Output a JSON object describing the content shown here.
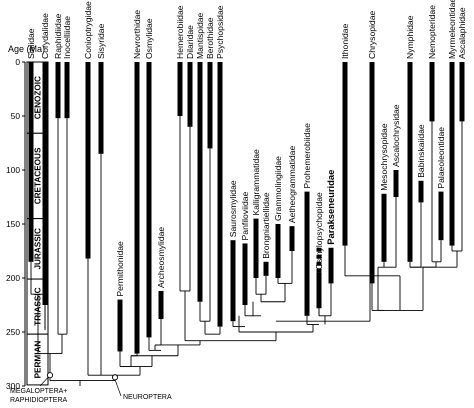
{
  "axis": {
    "title": "Age (Ma)",
    "ticks": [
      0,
      50,
      100,
      150,
      200,
      250,
      300
    ]
  },
  "periods": [
    {
      "name": "CENOZOIC",
      "start": 0,
      "end": 66
    },
    {
      "name": "CRETACEOUS",
      "start": 66,
      "end": 145
    },
    {
      "name": "JURASSIC",
      "start": 145,
      "end": 201
    },
    {
      "name": "TRIASSIC",
      "start": 201,
      "end": 252
    },
    {
      "name": "PERMIAN",
      "start": 252,
      "end": 299
    }
  ],
  "taxa": [
    {
      "name": "Sialidae",
      "bar": [
        0,
        185
      ],
      "thin": [
        185,
        215
      ]
    },
    {
      "name": "Corydalidae",
      "bar": [
        0,
        225
      ],
      "thin": [
        225,
        248
      ]
    },
    {
      "name": "Raphidiidae",
      "bar": [
        0,
        52
      ],
      "thin": [
        52,
        252
      ]
    },
    {
      "name": "Inocelliidae",
      "bar": [
        0,
        52
      ],
      "thin": [
        52,
        252
      ]
    },
    {
      "name": "Conioptrygidae",
      "bar": [
        0,
        182
      ],
      "thin": [
        182,
        280
      ]
    },
    {
      "name": "Sisyridae",
      "bar": [
        0,
        85
      ],
      "thin": [
        85,
        278
      ]
    },
    {
      "name": "Permithonidae",
      "bar": [
        220,
        268
      ],
      "thin": [
        268,
        282
      ]
    },
    {
      "name": "Nevrorthidae",
      "bar": [
        0,
        270
      ],
      "thin": [
        270,
        272
      ]
    },
    {
      "name": "Osmylidae",
      "bar": [
        0,
        255
      ],
      "thin": [
        255,
        267
      ]
    },
    {
      "name": "Archeosmylidae",
      "bar": [
        212,
        238
      ],
      "thin": [
        238,
        262
      ]
    },
    {
      "name": "Hemerobiidae",
      "bar": [
        0,
        50
      ],
      "thin": [
        50,
        212
      ]
    },
    {
      "name": "Dilaridae",
      "bar": [
        0,
        60
      ],
      "thin": [
        60,
        212
      ]
    },
    {
      "name": "Mantispidae",
      "bar": [
        0,
        222
      ],
      "thin": [
        222,
        240
      ]
    },
    {
      "name": "Berothidae",
      "bar": [
        0,
        80
      ],
      "thin": [
        80,
        240
      ]
    },
    {
      "name": "Psychopsidae",
      "bar": [
        0,
        245
      ],
      "thin": [
        245,
        252
      ]
    },
    {
      "name": "Saurosmylidae",
      "bar": [
        165,
        240
      ],
      "thin": [
        240,
        245
      ]
    },
    {
      "name": "Panfiloviidae",
      "bar": [
        168,
        225
      ],
      "thin": [
        225,
        235
      ]
    },
    {
      "name": "Kalligrammatidae",
      "bar": [
        145,
        200
      ],
      "thin": [
        200,
        215
      ]
    },
    {
      "name": "Brongniartiellidae",
      "bar": [
        185,
        198
      ],
      "thin": [
        198,
        215
      ]
    },
    {
      "name": "Grammolingiidae",
      "bar": [
        150,
        200
      ],
      "thin": [
        200,
        205
      ]
    },
    {
      "name": "Aetheogrammatidae",
      "bar": [
        152,
        175
      ],
      "thin": [
        175,
        205
      ]
    },
    {
      "name": "Prohemerobiidae",
      "bar": [
        120,
        235
      ],
      "thin": [
        235,
        243
      ]
    },
    {
      "name": "Osmylopsychopidae",
      "bar": [
        195,
        228
      ],
      "thin": [
        228,
        235
      ],
      "dashed": [
        172,
        228
      ]
    },
    {
      "name": "Parakseneuridae",
      "bar": [
        172,
        205
      ],
      "thin": [
        205,
        235
      ],
      "bold": true
    },
    {
      "name": "Ithonidae",
      "bar": [
        0,
        170
      ],
      "thin": [
        170,
        198
      ]
    },
    {
      "name": "Chrysopidae",
      "bar": [
        0,
        205
      ],
      "thin": [
        205,
        230
      ]
    },
    {
      "name": "Mesochrysopidae",
      "bar": [
        122,
        185
      ],
      "thin": [
        185,
        190
      ]
    },
    {
      "name": "Ascalochrysidae",
      "bar": [
        100,
        125
      ],
      "thin": [
        125,
        190
      ]
    },
    {
      "name": "Nymphidae",
      "bar": [
        0,
        185
      ],
      "thin": [
        185,
        190
      ]
    },
    {
      "name": "Babinskaiidae",
      "bar": [
        110,
        130
      ],
      "thin": [
        130,
        183
      ]
    },
    {
      "name": "Nemopteridae",
      "bar": [
        0,
        55
      ],
      "thin": [
        55,
        185
      ]
    },
    {
      "name": "Palaeoleontidae",
      "bar": [
        120,
        165
      ],
      "thin": [
        165,
        185
      ]
    },
    {
      "name": "Myrmeleontidae",
      "bar": [
        0,
        170
      ],
      "thin": [
        170,
        175
      ]
    },
    {
      "name": "Ascalaphidae",
      "bar": [
        0,
        55
      ],
      "thin": [
        55,
        175
      ]
    }
  ],
  "clade_labels": [
    "MEGALOPTERA+",
    "RAPHIDIOPTERA",
    "NEUROPTERA"
  ]
}
